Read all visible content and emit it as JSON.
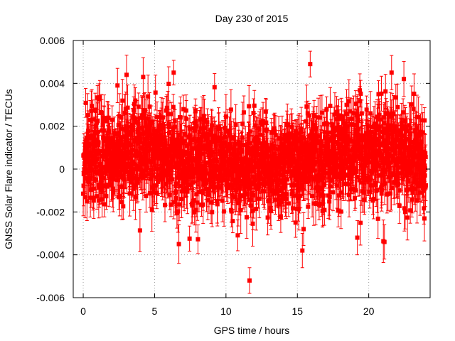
{
  "chart_data": {
    "type": "scatter",
    "title": "Day 230 of 2015",
    "xlabel": "GPS time / hours",
    "ylabel": "GNSS Solar Flare indicator / TECUs",
    "xlim": [
      -0.7,
      24.3
    ],
    "ylim": [
      -0.006,
      0.006
    ],
    "xticks": [
      "0",
      "5",
      "10",
      "15",
      "20"
    ],
    "xtick_values": [
      0,
      5,
      10,
      15,
      20
    ],
    "yticks": [
      "-0.006",
      "-0.004",
      "-0.002",
      "0",
      "0.002",
      "0.004",
      "0.006"
    ],
    "ytick_values": [
      -0.006,
      -0.004,
      -0.002,
      0,
      0.002,
      0.004,
      0.006
    ],
    "grid": true,
    "series_color": "#ff0000",
    "series": [
      {
        "marker": "square",
        "error_bars": true,
        "sample_interval_hours": 0.0125,
        "typical_spread_sd": 0.0011,
        "typical_error": 0.0009,
        "notable_points": [
          {
            "x": 11.65,
            "y": -0.0052,
            "err": 0.0006
          },
          {
            "x": 15.9,
            "y": 0.0049,
            "err": 0.0006
          },
          {
            "x": 6.7,
            "y": -0.0035,
            "err": 0.0009
          },
          {
            "x": 15.35,
            "y": -0.0038,
            "err": 0.0008
          },
          {
            "x": 21.1,
            "y": -0.0034,
            "err": 0.0008
          },
          {
            "x": 4.2,
            "y": 0.0043,
            "err": 0.0009
          },
          {
            "x": 21.6,
            "y": 0.0045,
            "err": 0.0008
          },
          {
            "x": 2.4,
            "y": 0.0039,
            "err": 0.0008
          },
          {
            "x": 19.2,
            "y": -0.0032,
            "err": 0.0008
          }
        ]
      }
    ]
  }
}
